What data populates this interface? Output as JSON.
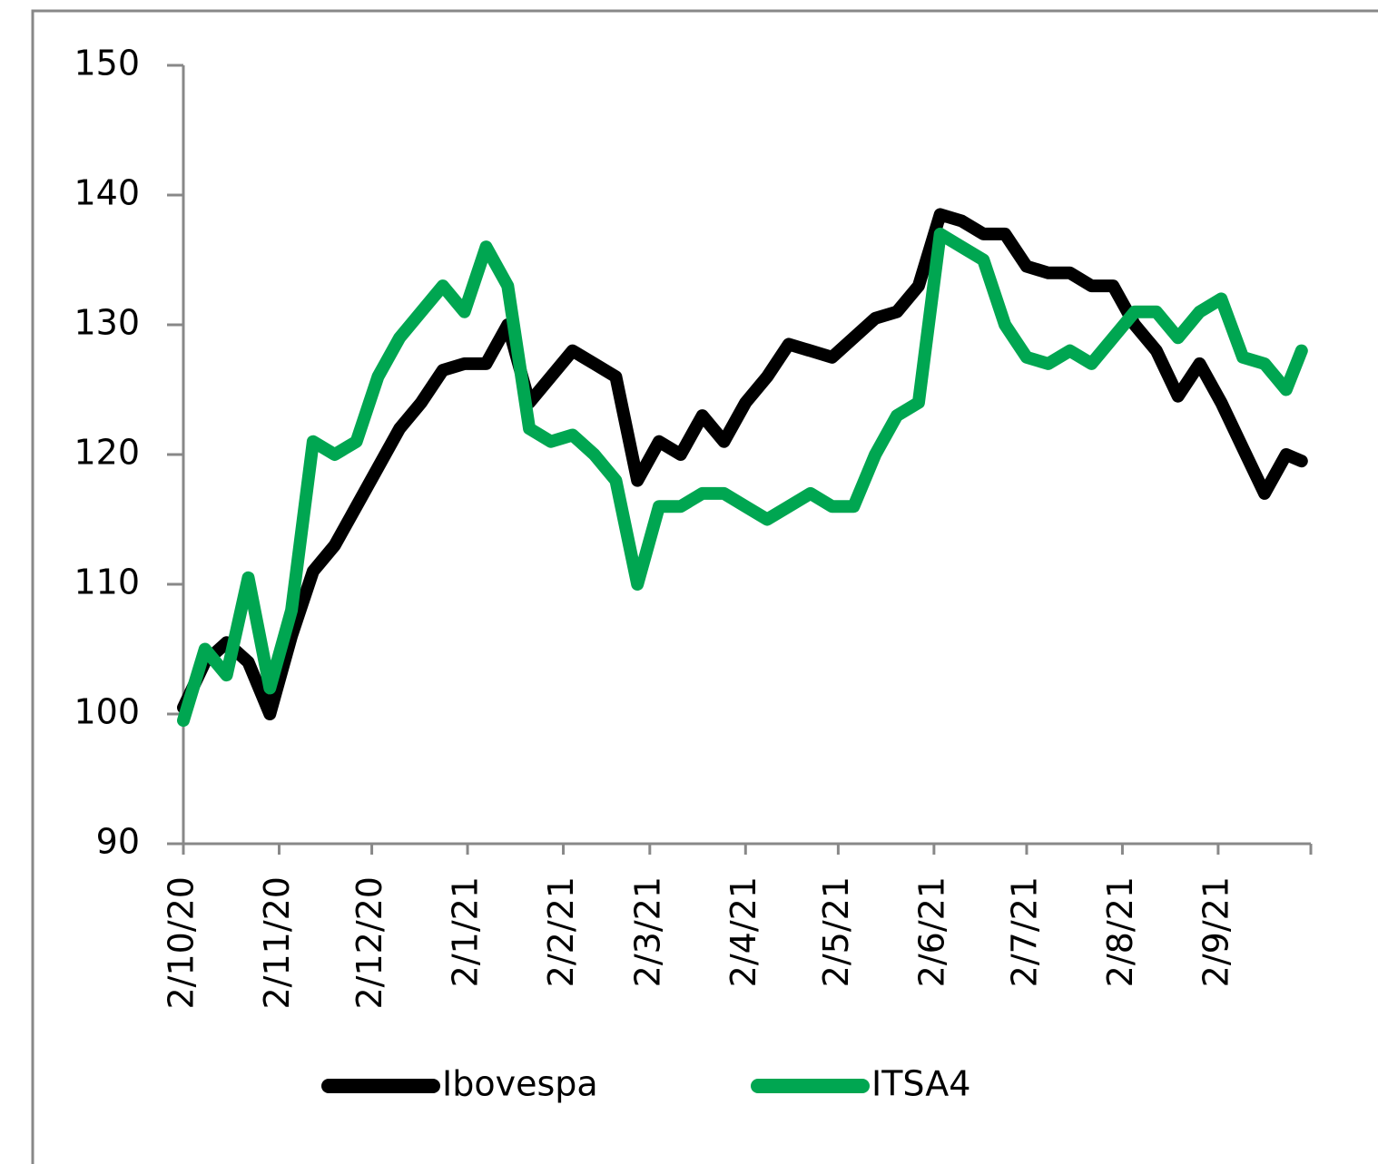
{
  "chart_data": {
    "type": "line",
    "x": [
      "2/10/20",
      "9/10/20",
      "16/10/20",
      "23/10/20",
      "30/10/20",
      "6/11/20",
      "13/11/20",
      "20/11/20",
      "27/11/20",
      "4/12/20",
      "11/12/20",
      "18/12/20",
      "25/12/20",
      "1/1/21",
      "8/1/21",
      "15/1/21",
      "22/1/21",
      "29/1/21",
      "5/2/21",
      "12/2/21",
      "19/2/21",
      "26/2/21",
      "5/3/21",
      "12/3/21",
      "19/3/21",
      "26/3/21",
      "2/4/21",
      "9/4/21",
      "16/4/21",
      "23/4/21",
      "30/4/21",
      "7/5/21",
      "14/5/21",
      "21/5/21",
      "28/5/21",
      "4/6/21",
      "11/6/21",
      "18/6/21",
      "25/6/21",
      "2/7/21",
      "9/7/21",
      "16/7/21",
      "23/7/21",
      "30/7/21",
      "6/8/21",
      "13/8/21",
      "20/8/21",
      "27/8/21",
      "3/9/21",
      "10/9/21",
      "17/9/21",
      "24/9/21",
      "29/9/21"
    ],
    "series": [
      {
        "name": "Ibovespa",
        "color": "#000000",
        "values": [
          100.5,
          104,
          105.5,
          104,
          100,
          106,
          111,
          113,
          116,
          119,
          122,
          124,
          126.5,
          127,
          127,
          130,
          124,
          126,
          128,
          127,
          126,
          118,
          121,
          120,
          123,
          121,
          124,
          126,
          128.5,
          128,
          127.5,
          129,
          130.5,
          131,
          133,
          138.5,
          138,
          137,
          137,
          134.5,
          134,
          134,
          133,
          133,
          130,
          128,
          124.5,
          127,
          124,
          120.5,
          117,
          120,
          119.5
        ]
      },
      {
        "name": "ITSA4",
        "color": "#00a651",
        "values": [
          99.5,
          105,
          103,
          110.5,
          102,
          108,
          121,
          120,
          121,
          126,
          129,
          131,
          133,
          131,
          136,
          133,
          122,
          121,
          121.5,
          120,
          118,
          110,
          116,
          116,
          117,
          117,
          116,
          115,
          116,
          117,
          116,
          116,
          120,
          123,
          124,
          137,
          136,
          135,
          130,
          127.5,
          127,
          128,
          127,
          129,
          131,
          131,
          129,
          131,
          132,
          127.5,
          127,
          125,
          128
        ]
      }
    ],
    "xlim": [
      "2/10/20",
      "2/10/21"
    ],
    "xticks": [
      "2/10/20",
      "2/11/20",
      "2/12/20",
      "2/1/21",
      "2/2/21",
      "2/3/21",
      "2/4/21",
      "2/5/21",
      "2/6/21",
      "2/7/21",
      "2/8/21",
      "2/9/21"
    ],
    "ylim": [
      90,
      150
    ],
    "yticks": [
      90,
      100,
      110,
      120,
      130,
      140,
      150
    ],
    "grid": false,
    "legend": "bottom"
  }
}
